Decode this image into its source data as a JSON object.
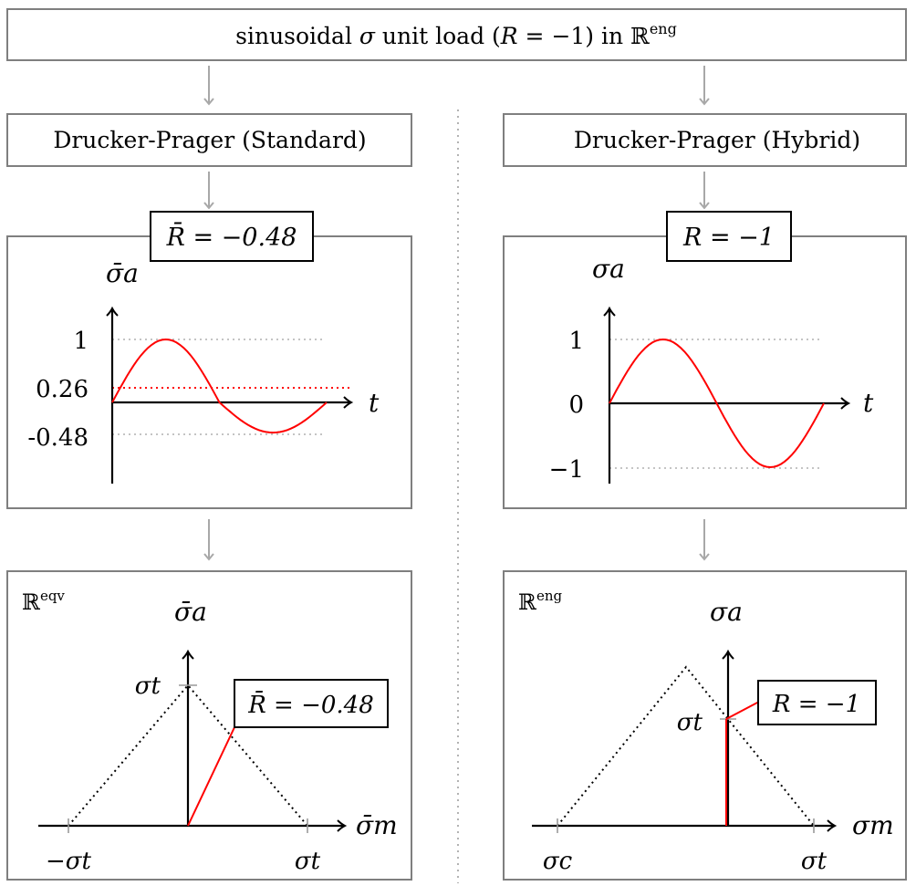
{
  "top": {
    "prefix": "sinusoidal ",
    "sigma": "σ",
    "middle": " unit load (",
    "R": "R",
    "eq": " = −1) in ",
    "space": "ℝ",
    "sup": "eng"
  },
  "left": {
    "title": "Drucker-Prager (Standard)",
    "ratio_label": "R̄ = −0.48",
    "ratio_value": -0.48,
    "time_plot": {
      "ylabel": "σ̄a",
      "xlabel": "t",
      "ticks": [
        "1",
        "0.26",
        "-0.48"
      ],
      "max": 1,
      "mean": 0.26,
      "min": -0.48
    },
    "haigh": {
      "space": "ℝ",
      "space_sup": "eqv",
      "ylabel": "σ̄a",
      "xlabel": "σ̄m",
      "y_tick": "σt",
      "x_ticks": [
        "−σt",
        "σt"
      ],
      "callout": "R̄ = −0.48"
    }
  },
  "right": {
    "title": "Drucker-Prager (Hybrid)",
    "ratio_label": "R = −1",
    "ratio_value": -1,
    "time_plot": {
      "ylabel": "σa",
      "xlabel": "t",
      "ticks": [
        "1",
        "0",
        "−1"
      ],
      "max": 1,
      "mean": 0,
      "min": -1
    },
    "haigh": {
      "space": "ℝ",
      "space_sup": "eng",
      "ylabel": "σa",
      "xlabel": "σm",
      "y_tick": "σt",
      "x_ticks": [
        "σc",
        "σt"
      ],
      "callout": "R = −1"
    }
  },
  "colors": {
    "accent": "#ff0000",
    "box_border": "#7f7f7f",
    "arrow": "#a8a8a8"
  }
}
